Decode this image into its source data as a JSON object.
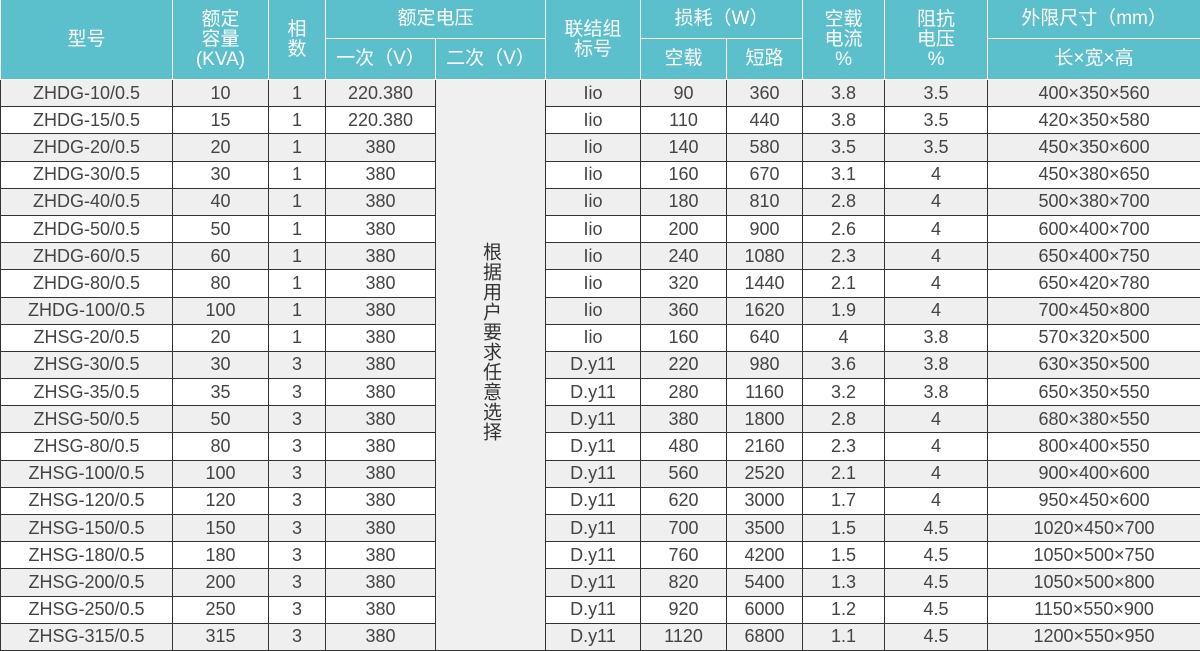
{
  "header": {
    "model": "型号",
    "capacity": [
      "额定",
      "容量",
      "(KVA)"
    ],
    "phases": [
      "相",
      "数"
    ],
    "rated_voltage": "额定电压",
    "primary": "一次（V）",
    "secondary": "二次（V）",
    "connection": [
      "联结组",
      "标号"
    ],
    "loss": "损耗（W）",
    "no_load": "空载",
    "short_circuit": "短路",
    "no_load_current": [
      "空载",
      "电流",
      "%"
    ],
    "impedance_voltage": [
      "阻抗",
      "电压",
      "%"
    ],
    "dimensions": "外限尺寸（mm）",
    "dimensions_sub": "长×宽×高"
  },
  "secondary_note": "根据用户要求任意选择",
  "rows": [
    [
      "ZHDG-10/0.5",
      "10",
      "1",
      "220.380",
      "Iio",
      "90",
      "360",
      "3.8",
      "3.5",
      "400×350×560"
    ],
    [
      "ZHDG-15/0.5",
      "15",
      "1",
      "220.380",
      "Iio",
      "110",
      "440",
      "3.8",
      "3.5",
      "420×350×580"
    ],
    [
      "ZHDG-20/0.5",
      "20",
      "1",
      "380",
      "Iio",
      "140",
      "580",
      "3.5",
      "3.5",
      "450×350×600"
    ],
    [
      "ZHDG-30/0.5",
      "30",
      "1",
      "380",
      "Iio",
      "160",
      "670",
      "3.1",
      "4",
      "450×380×650"
    ],
    [
      "ZHDG-40/0.5",
      "40",
      "1",
      "380",
      "Iio",
      "180",
      "810",
      "2.8",
      "4",
      "500×380×700"
    ],
    [
      "ZHDG-50/0.5",
      "50",
      "1",
      "380",
      "Iio",
      "200",
      "900",
      "2.6",
      "4",
      "600×400×700"
    ],
    [
      "ZHDG-60/0.5",
      "60",
      "1",
      "380",
      "Iio",
      "240",
      "1080",
      "2.3",
      "4",
      "650×400×750"
    ],
    [
      "ZHDG-80/0.5",
      "80",
      "1",
      "380",
      "Iio",
      "320",
      "1440",
      "2.1",
      "4",
      "650×420×780"
    ],
    [
      "ZHDG-100/0.5",
      "100",
      "1",
      "380",
      "Iio",
      "360",
      "1620",
      "1.9",
      "4",
      "700×450×800"
    ],
    [
      "ZHSG-20/0.5",
      "20",
      "1",
      "380",
      "Iio",
      "160",
      "640",
      "4",
      "3.8",
      "570×320×500"
    ],
    [
      "ZHSG-30/0.5",
      "30",
      "3",
      "380",
      "D.y11",
      "220",
      "980",
      "3.6",
      "3.8",
      "630×350×500"
    ],
    [
      "ZHSG-35/0.5",
      "35",
      "3",
      "380",
      "D.y11",
      "280",
      "1160",
      "3.2",
      "3.8",
      "650×350×550"
    ],
    [
      "ZHSG-50/0.5",
      "50",
      "3",
      "380",
      "D.y11",
      "380",
      "1800",
      "2.8",
      "4",
      "680×380×550"
    ],
    [
      "ZHSG-80/0.5",
      "80",
      "3",
      "380",
      "D.y11",
      "480",
      "2160",
      "2.3",
      "4",
      "800×400×550"
    ],
    [
      "ZHSG-100/0.5",
      "100",
      "3",
      "380",
      "D.y11",
      "560",
      "2520",
      "2.1",
      "4",
      "900×400×600"
    ],
    [
      "ZHSG-120/0.5",
      "120",
      "3",
      "380",
      "D.y11",
      "620",
      "3000",
      "1.7",
      "4",
      "950×450×600"
    ],
    [
      "ZHSG-150/0.5",
      "150",
      "3",
      "380",
      "D.y11",
      "700",
      "3500",
      "1.5",
      "4.5",
      "1020×450×700"
    ],
    [
      "ZHSG-180/0.5",
      "180",
      "3",
      "380",
      "D.y11",
      "760",
      "4200",
      "1.5",
      "4.5",
      "1050×500×750"
    ],
    [
      "ZHSG-200/0.5",
      "200",
      "3",
      "380",
      "D.y11",
      "820",
      "5400",
      "1.3",
      "4.5",
      "1050×500×800"
    ],
    [
      "ZHSG-250/0.5",
      "250",
      "3",
      "380",
      "D.y11",
      "920",
      "6000",
      "1.2",
      "4.5",
      "1150×550×900"
    ],
    [
      "ZHSG-315/0.5",
      "315",
      "3",
      "380",
      "D.y11",
      "1120",
      "6800",
      "1.1",
      "4.5",
      "1200×550×950"
    ]
  ],
  "colors": {
    "header_bg": "#5cbfcc",
    "row_alt": "#efefef"
  }
}
